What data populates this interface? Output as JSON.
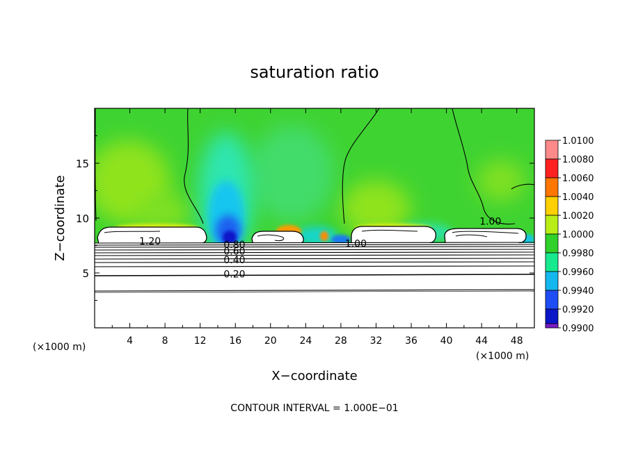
{
  "chart_data": {
    "type": "heatmap",
    "title": "saturation ratio",
    "xlabel": "X−coordinate",
    "ylabel": "Z−coordinate",
    "x_unit": "(×1000 m)",
    "y_unit": "(×1000 m)",
    "footer": "CONTOUR INTERVAL = 1.000E−01",
    "xlim": [
      0,
      50
    ],
    "ylim": [
      0,
      20
    ],
    "x_ticks": [
      "4",
      "8",
      "12",
      "16",
      "20",
      "24",
      "28",
      "32",
      "36",
      "40",
      "44",
      "48"
    ],
    "x_tick_values": [
      4,
      8,
      12,
      16,
      20,
      24,
      28,
      32,
      36,
      40,
      44,
      48
    ],
    "y_ticks": [
      "5",
      "10",
      "15"
    ],
    "y_tick_values": [
      5,
      10,
      15
    ],
    "colorbar": {
      "labels": [
        "1.0100",
        "1.0080",
        "1.0060",
        "1.0040",
        "1.0020",
        "1.0000",
        "0.9980",
        "0.9960",
        "0.9940",
        "0.9920",
        "0.9900"
      ],
      "colors": [
        "#ff8a8a",
        "#ff2020",
        "#ff7700",
        "#ffd000",
        "#b9ef16",
        "#2fd12a",
        "#17e98f",
        "#14b8ee",
        "#1e4df5",
        "#0a16c8",
        "#7a1cc8"
      ]
    },
    "contour_labels": [
      {
        "text": "1.20",
        "x": 6.3,
        "z": 7.9
      },
      {
        "text": "0.80",
        "x": 15.9,
        "z": 7.6
      },
      {
        "text": "0.60",
        "x": 15.9,
        "z": 7.0
      },
      {
        "text": "0.40",
        "x": 15.9,
        "z": 6.2
      },
      {
        "text": "0.20",
        "x": 15.9,
        "z": 4.9
      },
      {
        "text": "1.00",
        "x": 29.7,
        "z": 7.7
      },
      {
        "text": "1.00",
        "x": 45.0,
        "z": 9.7
      }
    ]
  }
}
